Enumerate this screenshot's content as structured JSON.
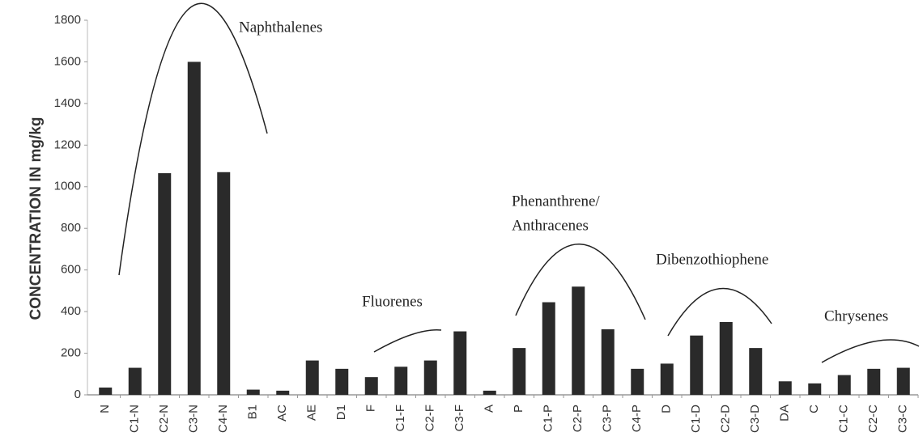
{
  "chart_data": {
    "type": "bar",
    "y_label": "CONCENTRATION IN mg/kg",
    "categories": [
      "N",
      "C1-N",
      "C2-N",
      "C3-N",
      "C4-N",
      "B1",
      "AC",
      "AE",
      "D1",
      "F",
      "C1-F",
      "C2-F",
      "C3-F",
      "A",
      "P",
      "C1-P",
      "C2-P",
      "C3-P",
      "C4-P",
      "D",
      "C1-D",
      "C2-D",
      "C3-D",
      "DA",
      "C",
      "C1-C",
      "C2-C",
      "C3-C"
    ],
    "values": [
      35,
      130,
      1065,
      1600,
      1070,
      25,
      20,
      165,
      125,
      85,
      135,
      165,
      305,
      20,
      225,
      445,
      520,
      315,
      125,
      150,
      285,
      350,
      225,
      65,
      55,
      95,
      125,
      130
    ],
    "color": "#2a2a2a",
    "ylim": [
      0,
      1800
    ],
    "yticks": [
      0,
      200,
      400,
      600,
      800,
      1000,
      1200,
      1400,
      1600,
      1800
    ],
    "grid": false,
    "annotations": [
      [
        "Naphthalenes"
      ],
      [
        "Fluorenes"
      ],
      [
        "Phenanthrene/",
        "Anthracenes"
      ],
      [
        "Dibenzothiophene"
      ],
      [
        "Chrysenes"
      ]
    ]
  }
}
